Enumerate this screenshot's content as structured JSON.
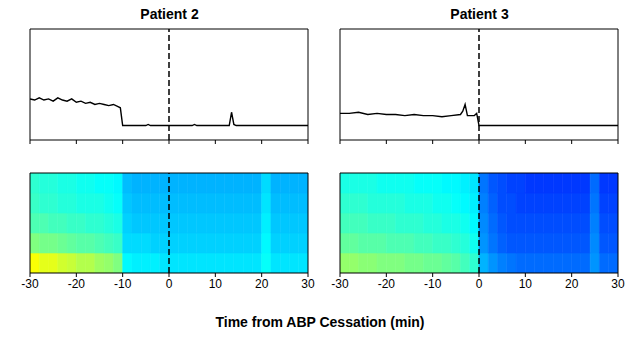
{
  "xlabel": "Time from ABP Cessation (min)",
  "chart_data": [
    {
      "type": "line",
      "title": "Patient 2",
      "x": [
        -30,
        -29,
        -28,
        -27,
        -26,
        -25,
        -24,
        -23,
        -22,
        -21,
        -20,
        -19,
        -18,
        -17,
        -16,
        -15,
        -14,
        -13,
        -12,
        -11,
        -10.5,
        -10,
        -5,
        -4.5,
        -4,
        0,
        5,
        5.5,
        6,
        13,
        13.5,
        14,
        14.5,
        30
      ],
      "values": [
        0.37,
        0.36,
        0.38,
        0.36,
        0.37,
        0.35,
        0.38,
        0.36,
        0.35,
        0.37,
        0.34,
        0.35,
        0.33,
        0.34,
        0.32,
        0.33,
        0.32,
        0.31,
        0.32,
        0.3,
        0.29,
        0.13,
        0.13,
        0.14,
        0.13,
        0.13,
        0.13,
        0.14,
        0.13,
        0.13,
        0.25,
        0.14,
        0.13,
        0.13
      ],
      "color": "#000000",
      "xlim": [
        -30,
        30
      ],
      "xticks": [
        -30,
        -20,
        -10,
        0,
        10,
        20,
        30
      ],
      "ylim": [
        0,
        1
      ],
      "vline": 0,
      "tick_labels": false
    },
    {
      "type": "heatmap",
      "xbins": [
        -30,
        -28,
        -26,
        -24,
        -22,
        -20,
        -18,
        -16,
        -14,
        -12,
        -10,
        -8,
        -6,
        -4,
        -2,
        0,
        2,
        4,
        6,
        8,
        10,
        12,
        14,
        16,
        18,
        20,
        22,
        24,
        26,
        28,
        30
      ],
      "ybins": [
        0,
        1,
        2,
        3,
        4,
        5
      ],
      "cells": [
        [
          0.62,
          0.6,
          0.6,
          0.58,
          0.57,
          0.55,
          0.55,
          0.53,
          0.52,
          0.5,
          0.37,
          0.36,
          0.36,
          0.36,
          0.35,
          0.35,
          0.35,
          0.35,
          0.35,
          0.35,
          0.35,
          0.35,
          0.35,
          0.35,
          0.35,
          0.38,
          0.35,
          0.35,
          0.35,
          0.35
        ],
        [
          0.5,
          0.49,
          0.49,
          0.48,
          0.47,
          0.46,
          0.46,
          0.45,
          0.44,
          0.43,
          0.34,
          0.34,
          0.34,
          0.33,
          0.33,
          0.33,
          0.33,
          0.33,
          0.33,
          0.33,
          0.33,
          0.33,
          0.33,
          0.33,
          0.33,
          0.37,
          0.33,
          0.33,
          0.33,
          0.33
        ],
        [
          0.45,
          0.45,
          0.44,
          0.44,
          0.43,
          0.43,
          0.42,
          0.42,
          0.41,
          0.4,
          0.33,
          0.32,
          0.32,
          0.32,
          0.32,
          0.32,
          0.32,
          0.32,
          0.32,
          0.32,
          0.32,
          0.32,
          0.32,
          0.32,
          0.32,
          0.36,
          0.32,
          0.32,
          0.32,
          0.32
        ],
        [
          0.43,
          0.42,
          0.42,
          0.41,
          0.41,
          0.4,
          0.4,
          0.4,
          0.39,
          0.38,
          0.32,
          0.31,
          0.31,
          0.31,
          0.31,
          0.31,
          0.31,
          0.31,
          0.31,
          0.31,
          0.31,
          0.31,
          0.31,
          0.31,
          0.31,
          0.35,
          0.31,
          0.31,
          0.31,
          0.31
        ],
        [
          0.42,
          0.41,
          0.41,
          0.4,
          0.4,
          0.39,
          0.39,
          0.38,
          0.38,
          0.37,
          0.31,
          0.3,
          0.3,
          0.3,
          0.3,
          0.3,
          0.3,
          0.3,
          0.3,
          0.3,
          0.3,
          0.3,
          0.3,
          0.3,
          0.3,
          0.34,
          0.3,
          0.3,
          0.3,
          0.3
        ]
      ],
      "color_range": [
        0,
        1
      ],
      "xlim": [
        -30,
        30
      ],
      "xticks": [
        -30,
        -20,
        -10,
        0,
        10,
        20,
        30
      ],
      "ylim": [
        0,
        5
      ],
      "vline": 0,
      "tick_labels": "x"
    },
    {
      "type": "line",
      "title": "Patient 3",
      "x": [
        -30,
        -28,
        -26,
        -24,
        -22,
        -20,
        -18,
        -16,
        -14,
        -12,
        -10,
        -8,
        -6,
        -4,
        -3.5,
        -3,
        -2.5,
        -1,
        -0.5,
        0,
        30
      ],
      "values": [
        0.24,
        0.24,
        0.25,
        0.23,
        0.24,
        0.23,
        0.23,
        0.22,
        0.23,
        0.22,
        0.22,
        0.21,
        0.22,
        0.23,
        0.26,
        0.32,
        0.22,
        0.22,
        0.24,
        0.13,
        0.13
      ],
      "color": "#000000",
      "xlim": [
        -30,
        30
      ],
      "xticks": [
        -30,
        -20,
        -10,
        0,
        10,
        20,
        30
      ],
      "ylim": [
        0,
        1
      ],
      "vline": 0,
      "tick_labels": false
    },
    {
      "type": "heatmap",
      "xbins": [
        -30,
        -28,
        -26,
        -24,
        -22,
        -20,
        -18,
        -16,
        -14,
        -12,
        -10,
        -8,
        -6,
        -4,
        -2,
        0,
        2,
        4,
        6,
        8,
        10,
        12,
        14,
        16,
        18,
        20,
        22,
        24,
        26,
        28,
        30
      ],
      "ybins": [
        0,
        1,
        2,
        3,
        4,
        5
      ],
      "cells": [
        [
          0.52,
          0.52,
          0.51,
          0.51,
          0.5,
          0.5,
          0.5,
          0.49,
          0.49,
          0.48,
          0.48,
          0.47,
          0.46,
          0.44,
          0.42,
          0.3,
          0.27,
          0.25,
          0.24,
          0.23,
          0.23,
          0.23,
          0.23,
          0.23,
          0.23,
          0.23,
          0.23,
          0.27,
          0.23,
          0.23
        ],
        [
          0.47,
          0.47,
          0.46,
          0.46,
          0.46,
          0.45,
          0.45,
          0.45,
          0.44,
          0.44,
          0.43,
          0.43,
          0.42,
          0.41,
          0.39,
          0.27,
          0.24,
          0.22,
          0.21,
          0.21,
          0.21,
          0.21,
          0.21,
          0.21,
          0.21,
          0.21,
          0.21,
          0.26,
          0.21,
          0.21
        ],
        [
          0.44,
          0.44,
          0.44,
          0.43,
          0.43,
          0.43,
          0.42,
          0.42,
          0.42,
          0.41,
          0.41,
          0.4,
          0.4,
          0.39,
          0.37,
          0.26,
          0.23,
          0.21,
          0.2,
          0.2,
          0.2,
          0.2,
          0.2,
          0.2,
          0.2,
          0.2,
          0.2,
          0.25,
          0.2,
          0.2
        ],
        [
          0.42,
          0.42,
          0.42,
          0.41,
          0.41,
          0.41,
          0.41,
          0.4,
          0.4,
          0.4,
          0.39,
          0.39,
          0.38,
          0.37,
          0.36,
          0.25,
          0.22,
          0.2,
          0.2,
          0.19,
          0.19,
          0.19,
          0.19,
          0.19,
          0.19,
          0.19,
          0.19,
          0.24,
          0.19,
          0.19
        ],
        [
          0.4,
          0.4,
          0.4,
          0.4,
          0.39,
          0.39,
          0.39,
          0.39,
          0.38,
          0.38,
          0.38,
          0.37,
          0.37,
          0.36,
          0.35,
          0.24,
          0.21,
          0.2,
          0.19,
          0.19,
          0.18,
          0.18,
          0.18,
          0.18,
          0.18,
          0.18,
          0.18,
          0.23,
          0.18,
          0.18
        ]
      ],
      "color_range": [
        0,
        1
      ],
      "xlim": [
        -30,
        30
      ],
      "xticks": [
        -30,
        -20,
        -10,
        0,
        10,
        20,
        30
      ],
      "ylim": [
        0,
        5
      ],
      "vline": 0,
      "tick_labels": "x"
    }
  ]
}
